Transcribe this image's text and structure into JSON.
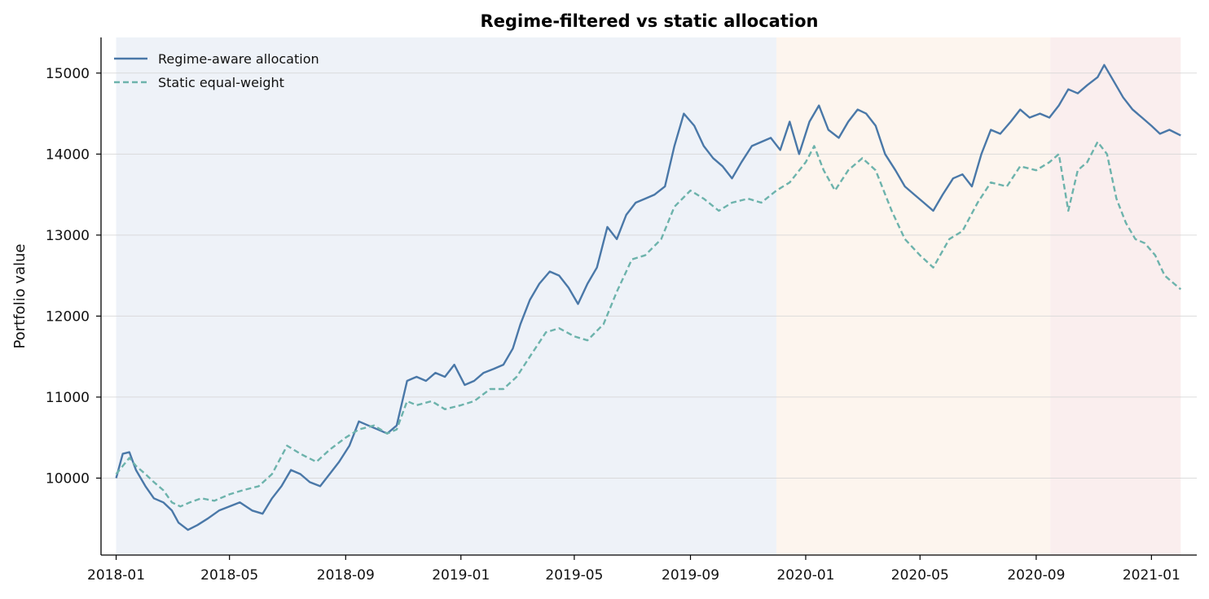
{
  "chart_data": {
    "type": "line",
    "title": "Regime-filtered vs static allocation",
    "xlabel": "",
    "ylabel": "Portfolio value",
    "x_type": "date",
    "xlim": [
      "2017-12-16",
      "2021-02-18"
    ],
    "ylim": [
      9050,
      15440
    ],
    "x_ticks": [
      "2018-01",
      "2018-05",
      "2018-09",
      "2019-01",
      "2019-05",
      "2019-09",
      "2020-01",
      "2020-05",
      "2020-09",
      "2021-01"
    ],
    "y_ticks": [
      10000,
      11000,
      12000,
      13000,
      14000,
      15000
    ],
    "grid": "horizontal",
    "legend_position": "top-left",
    "regimes": [
      {
        "start": "2018-01-01",
        "end": "2019-12-01",
        "color": "#eef2f8"
      },
      {
        "start": "2019-12-01",
        "end": "2020-09-16",
        "color": "#fdf5ee"
      },
      {
        "start": "2020-09-16",
        "end": "2021-02-01",
        "color": "#faeeee"
      }
    ],
    "series": [
      {
        "name": "Regime-aware allocation",
        "color": "#4a78a8",
        "style": "solid",
        "points": [
          [
            "2018-01-01",
            10000
          ],
          [
            "2018-01-08",
            10300
          ],
          [
            "2018-01-15",
            10320
          ],
          [
            "2018-01-22",
            10100
          ],
          [
            "2018-02-01",
            9900
          ],
          [
            "2018-02-10",
            9750
          ],
          [
            "2018-02-20",
            9700
          ],
          [
            "2018-03-01",
            9600
          ],
          [
            "2018-03-08",
            9450
          ],
          [
            "2018-03-18",
            9360
          ],
          [
            "2018-03-28",
            9420
          ],
          [
            "2018-04-08",
            9500
          ],
          [
            "2018-04-20",
            9600
          ],
          [
            "2018-05-01",
            9650
          ],
          [
            "2018-05-12",
            9700
          ],
          [
            "2018-05-25",
            9600
          ],
          [
            "2018-06-05",
            9560
          ],
          [
            "2018-06-15",
            9750
          ],
          [
            "2018-06-25",
            9900
          ],
          [
            "2018-07-05",
            10100
          ],
          [
            "2018-07-15",
            10050
          ],
          [
            "2018-07-25",
            9950
          ],
          [
            "2018-08-05",
            9900
          ],
          [
            "2018-08-15",
            10050
          ],
          [
            "2018-08-25",
            10200
          ],
          [
            "2018-09-05",
            10400
          ],
          [
            "2018-09-15",
            10700
          ],
          [
            "2018-09-25",
            10650
          ],
          [
            "2018-10-05",
            10600
          ],
          [
            "2018-10-15",
            10550
          ],
          [
            "2018-10-25",
            10650
          ],
          [
            "2018-11-05",
            11200
          ],
          [
            "2018-11-15",
            11250
          ],
          [
            "2018-11-25",
            11200
          ],
          [
            "2018-12-05",
            11300
          ],
          [
            "2018-12-15",
            11250
          ],
          [
            "2018-12-25",
            11400
          ],
          [
            "2019-01-05",
            11150
          ],
          [
            "2019-01-15",
            11200
          ],
          [
            "2019-01-25",
            11300
          ],
          [
            "2019-02-05",
            11350
          ],
          [
            "2019-02-15",
            11400
          ],
          [
            "2019-02-25",
            11600
          ],
          [
            "2019-03-05",
            11900
          ],
          [
            "2019-03-15",
            12200
          ],
          [
            "2019-03-25",
            12400
          ],
          [
            "2019-04-05",
            12550
          ],
          [
            "2019-04-15",
            12500
          ],
          [
            "2019-04-25",
            12350
          ],
          [
            "2019-05-05",
            12150
          ],
          [
            "2019-05-15",
            12400
          ],
          [
            "2019-05-25",
            12600
          ],
          [
            "2019-06-05",
            13100
          ],
          [
            "2019-06-15",
            12950
          ],
          [
            "2019-06-25",
            13250
          ],
          [
            "2019-07-05",
            13400
          ],
          [
            "2019-07-15",
            13450
          ],
          [
            "2019-07-25",
            13500
          ],
          [
            "2019-08-05",
            13600
          ],
          [
            "2019-08-15",
            14100
          ],
          [
            "2019-08-25",
            14500
          ],
          [
            "2019-09-05",
            14350
          ],
          [
            "2019-09-15",
            14100
          ],
          [
            "2019-09-25",
            13950
          ],
          [
            "2019-10-05",
            13850
          ],
          [
            "2019-10-15",
            13700
          ],
          [
            "2019-10-25",
            13900
          ],
          [
            "2019-11-05",
            14100
          ],
          [
            "2019-11-15",
            14150
          ],
          [
            "2019-11-25",
            14200
          ],
          [
            "2019-12-05",
            14050
          ],
          [
            "2019-12-15",
            14400
          ],
          [
            "2019-12-25",
            14000
          ],
          [
            "2020-01-05",
            14400
          ],
          [
            "2020-01-15",
            14600
          ],
          [
            "2020-01-25",
            14300
          ],
          [
            "2020-02-05",
            14200
          ],
          [
            "2020-02-15",
            14400
          ],
          [
            "2020-02-25",
            14550
          ],
          [
            "2020-03-05",
            14500
          ],
          [
            "2020-03-15",
            14350
          ],
          [
            "2020-03-25",
            14000
          ],
          [
            "2020-04-05",
            13800
          ],
          [
            "2020-04-15",
            13600
          ],
          [
            "2020-04-25",
            13500
          ],
          [
            "2020-05-05",
            13400
          ],
          [
            "2020-05-15",
            13300
          ],
          [
            "2020-05-25",
            13500
          ],
          [
            "2020-06-05",
            13700
          ],
          [
            "2020-06-15",
            13750
          ],
          [
            "2020-06-25",
            13600
          ],
          [
            "2020-07-05",
            14000
          ],
          [
            "2020-07-15",
            14300
          ],
          [
            "2020-07-25",
            14250
          ],
          [
            "2020-08-05",
            14400
          ],
          [
            "2020-08-15",
            14550
          ],
          [
            "2020-08-25",
            14450
          ],
          [
            "2020-09-05",
            14500
          ],
          [
            "2020-09-15",
            14450
          ],
          [
            "2020-09-25",
            14600
          ],
          [
            "2020-10-05",
            14800
          ],
          [
            "2020-10-15",
            14750
          ],
          [
            "2020-10-25",
            14850
          ],
          [
            "2020-11-05",
            14950
          ],
          [
            "2020-11-12",
            15100
          ],
          [
            "2020-11-22",
            14900
          ],
          [
            "2020-12-02",
            14700
          ],
          [
            "2020-12-12",
            14550
          ],
          [
            "2020-12-22",
            14450
          ],
          [
            "2021-01-01",
            14350
          ],
          [
            "2021-01-10",
            14250
          ],
          [
            "2021-01-20",
            14300
          ],
          [
            "2021-02-01",
            14230
          ]
        ]
      },
      {
        "name": "Static equal-weight",
        "color": "#6db3ac",
        "style": "dashed",
        "points": [
          [
            "2018-01-01",
            10050
          ],
          [
            "2018-01-08",
            10150
          ],
          [
            "2018-01-15",
            10250
          ],
          [
            "2018-01-22",
            10150
          ],
          [
            "2018-02-01",
            10050
          ],
          [
            "2018-02-10",
            9950
          ],
          [
            "2018-02-20",
            9850
          ],
          [
            "2018-03-01",
            9700
          ],
          [
            "2018-03-10",
            9650
          ],
          [
            "2018-03-20",
            9700
          ],
          [
            "2018-04-01",
            9750
          ],
          [
            "2018-04-15",
            9720
          ],
          [
            "2018-05-01",
            9800
          ],
          [
            "2018-05-15",
            9850
          ],
          [
            "2018-06-01",
            9900
          ],
          [
            "2018-06-15",
            10050
          ],
          [
            "2018-07-01",
            10400
          ],
          [
            "2018-07-15",
            10300
          ],
          [
            "2018-08-01",
            10200
          ],
          [
            "2018-08-15",
            10350
          ],
          [
            "2018-09-01",
            10500
          ],
          [
            "2018-09-15",
            10600
          ],
          [
            "2018-10-01",
            10650
          ],
          [
            "2018-10-15",
            10550
          ],
          [
            "2018-10-25",
            10600
          ],
          [
            "2018-11-05",
            10950
          ],
          [
            "2018-11-15",
            10900
          ],
          [
            "2018-12-01",
            10950
          ],
          [
            "2018-12-15",
            10850
          ],
          [
            "2019-01-01",
            10900
          ],
          [
            "2019-01-15",
            10950
          ],
          [
            "2019-02-01",
            11100
          ],
          [
            "2019-02-15",
            11100
          ],
          [
            "2019-03-01",
            11250
          ],
          [
            "2019-03-15",
            11500
          ],
          [
            "2019-04-01",
            11800
          ],
          [
            "2019-04-15",
            11850
          ],
          [
            "2019-05-01",
            11750
          ],
          [
            "2019-05-15",
            11700
          ],
          [
            "2019-06-01",
            11900
          ],
          [
            "2019-06-15",
            12300
          ],
          [
            "2019-07-01",
            12700
          ],
          [
            "2019-07-15",
            12750
          ],
          [
            "2019-08-01",
            12950
          ],
          [
            "2019-08-15",
            13350
          ],
          [
            "2019-09-01",
            13550
          ],
          [
            "2019-09-15",
            13450
          ],
          [
            "2019-10-01",
            13300
          ],
          [
            "2019-10-15",
            13400
          ],
          [
            "2019-11-01",
            13450
          ],
          [
            "2019-11-15",
            13400
          ],
          [
            "2019-12-01",
            13550
          ],
          [
            "2019-12-15",
            13650
          ],
          [
            "2020-01-01",
            13900
          ],
          [
            "2020-01-10",
            14100
          ],
          [
            "2020-01-20",
            13800
          ],
          [
            "2020-02-01",
            13550
          ],
          [
            "2020-02-15",
            13800
          ],
          [
            "2020-03-01",
            13950
          ],
          [
            "2020-03-15",
            13800
          ],
          [
            "2020-04-01",
            13300
          ],
          [
            "2020-04-15",
            12950
          ],
          [
            "2020-05-01",
            12750
          ],
          [
            "2020-05-15",
            12600
          ],
          [
            "2020-06-01",
            12950
          ],
          [
            "2020-06-15",
            13050
          ],
          [
            "2020-07-01",
            13400
          ],
          [
            "2020-07-15",
            13650
          ],
          [
            "2020-08-01",
            13600
          ],
          [
            "2020-08-15",
            13850
          ],
          [
            "2020-09-01",
            13800
          ],
          [
            "2020-09-15",
            13900
          ],
          [
            "2020-09-25",
            14000
          ],
          [
            "2020-10-05",
            13300
          ],
          [
            "2020-10-15",
            13800
          ],
          [
            "2020-10-25",
            13900
          ],
          [
            "2020-11-05",
            14150
          ],
          [
            "2020-11-15",
            14000
          ],
          [
            "2020-11-25",
            13450
          ],
          [
            "2020-12-05",
            13150
          ],
          [
            "2020-12-15",
            12950
          ],
          [
            "2020-12-25",
            12900
          ],
          [
            "2021-01-05",
            12750
          ],
          [
            "2021-01-15",
            12500
          ],
          [
            "2021-01-25",
            12400
          ],
          [
            "2021-02-01",
            12330
          ]
        ]
      }
    ]
  }
}
